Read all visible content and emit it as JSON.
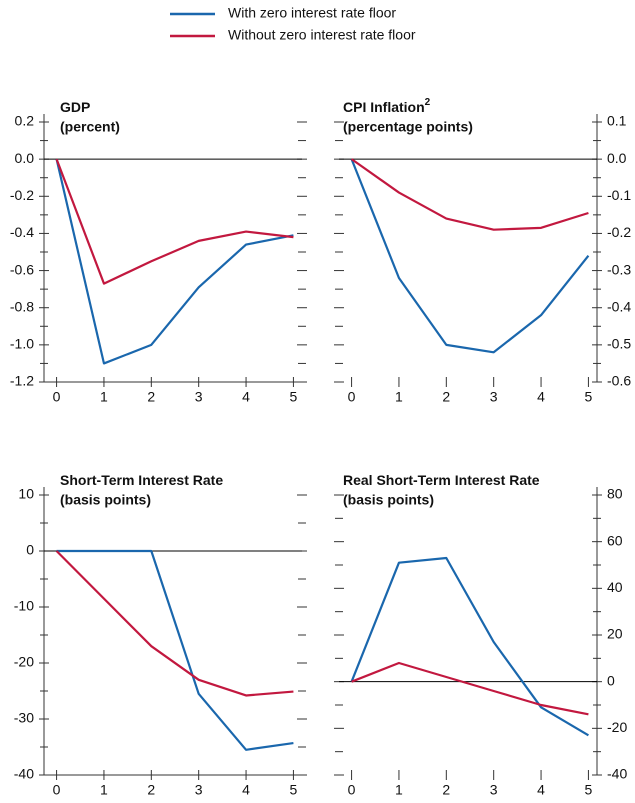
{
  "chart_data": [
    {
      "type": "line",
      "title": "GDP",
      "subtitle": "(percent)",
      "axis_side": "left",
      "x": [
        0,
        1,
        2,
        3,
        4,
        5
      ],
      "xlim": [
        -0.35,
        5.35
      ],
      "xticks": [
        0,
        1,
        2,
        3,
        4,
        5
      ],
      "ylim": [
        -1.2,
        0.2
      ],
      "yticks": [
        -1.2,
        {
          "value": -1,
          "label": "-1.0"
        },
        -0.8,
        -0.6,
        -0.4,
        -0.2,
        {
          "value": 0,
          "label": "0.0"
        },
        0.2
      ],
      "yminorticks": [
        -1.1,
        -0.9,
        -0.7,
        -0.5,
        -0.3,
        -0.1,
        0.1
      ],
      "series": [
        {
          "name": "With zero interest rate floor",
          "color": "#1a67ad",
          "values": [
            0,
            -1.1,
            -1.0,
            -0.69,
            -0.46,
            -0.41
          ]
        },
        {
          "name": "Without zero interest rate floor",
          "color": "#c2183f",
          "values": [
            0,
            -0.67,
            -0.55,
            -0.44,
            -0.39,
            -0.42
          ]
        }
      ]
    },
    {
      "type": "line",
      "title": "CPI Inflation",
      "footnote_marker": "2",
      "subtitle": "(percentage points)",
      "axis_side": "right",
      "x": [
        0,
        1,
        2,
        3,
        4,
        5
      ],
      "xlim": [
        -0.35,
        5.35
      ],
      "xticks": [
        0,
        1,
        2,
        3,
        4,
        5
      ],
      "ylim": [
        -0.6,
        0.1
      ],
      "yticks": [
        -0.6,
        -0.5,
        -0.4,
        -0.3,
        -0.2,
        -0.1,
        {
          "value": 0,
          "label": "0.0"
        },
        0.1
      ],
      "yminorticks": [
        -0.55,
        -0.45,
        -0.35,
        -0.25,
        -0.15,
        -0.05,
        0.05
      ],
      "series": [
        {
          "color": "#1a67ad",
          "values": [
            0,
            -0.32,
            -0.5,
            -0.52,
            -0.42,
            -0.26
          ]
        },
        {
          "color": "#c2183f",
          "values": [
            0,
            -0.09,
            -0.16,
            -0.19,
            -0.185,
            -0.145
          ]
        }
      ]
    },
    {
      "type": "line",
      "title": "Short-Term Interest Rate",
      "subtitle": "(basis points)",
      "axis_side": "left",
      "x": [
        0,
        1,
        2,
        3,
        4,
        5
      ],
      "xlim": [
        -0.35,
        5.35
      ],
      "xticks": [
        0,
        1,
        2,
        3,
        4,
        5
      ],
      "ylim": [
        -40,
        10
      ],
      "yticks": [
        -40,
        -30,
        -20,
        -10,
        0,
        10
      ],
      "yminorticks": [
        -35,
        -25,
        -15,
        -5,
        5
      ],
      "series": [
        {
          "color": "#1a67ad",
          "values": [
            0,
            0,
            0,
            -25.5,
            -35.5,
            -34.3
          ]
        },
        {
          "color": "#c2183f",
          "values": [
            0,
            -8.5,
            -17,
            -23,
            -25.8,
            -25.1
          ]
        }
      ]
    },
    {
      "type": "line",
      "title": "Real Short-Term Interest Rate",
      "subtitle": "(basis points)",
      "axis_side": "right",
      "x": [
        0,
        1,
        2,
        3,
        4,
        5
      ],
      "xlim": [
        -0.35,
        5.35
      ],
      "xticks": [
        0,
        1,
        2,
        3,
        4,
        5
      ],
      "ylim": [
        -40,
        80
      ],
      "yticks": [
        -40,
        -20,
        0,
        20,
        40,
        60,
        80
      ],
      "yminorticks": [
        -30,
        -10,
        10,
        30,
        50,
        70
      ],
      "series": [
        {
          "color": "#1a67ad",
          "values": [
            0,
            51,
            53,
            17,
            -11,
            -23
          ]
        },
        {
          "color": "#c2183f",
          "values": [
            0,
            8,
            2,
            -4,
            -10,
            -14
          ]
        }
      ]
    }
  ]
}
